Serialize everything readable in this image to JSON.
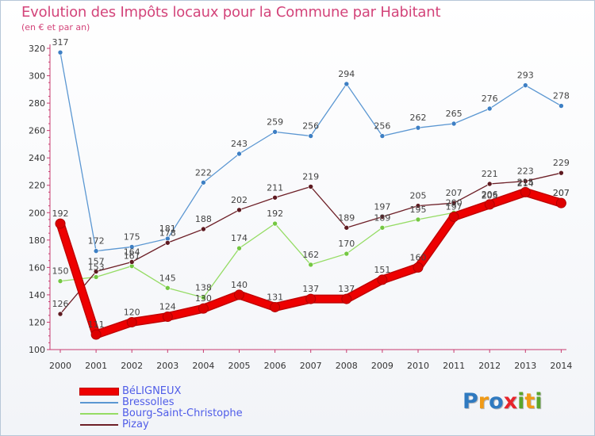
{
  "title": "Evolution des Impôts locaux pour la Commune par Habitant",
  "subtitle": "(en € et par an)",
  "logo": {
    "text": "Proxiti",
    "letters": [
      {
        "char": "P",
        "color": "#2f7ac0"
      },
      {
        "char": "r",
        "color": "#f09a16"
      },
      {
        "char": "o",
        "color": "#2f7ac0"
      },
      {
        "char": "x",
        "color": "#e7242b"
      },
      {
        "char": "i",
        "color": "#5aa52c"
      },
      {
        "char": "t",
        "color": "#f09a16"
      },
      {
        "char": "i",
        "color": "#5aa52c"
      }
    ]
  },
  "chart_data": {
    "type": "line",
    "title": "Evolution des Impôts locaux pour la Commune par Habitant",
    "subtitle": "(en € et par an)",
    "xlabel": "",
    "ylabel": "",
    "x": [
      "2000",
      "2001",
      "2002",
      "2003",
      "2004",
      "2005",
      "2006",
      "2007",
      "2008",
      "2009",
      "2010",
      "2011",
      "2012",
      "2013",
      "2014"
    ],
    "ylim": [
      100,
      320
    ],
    "yticks": [
      100,
      120,
      140,
      160,
      180,
      200,
      220,
      240,
      260,
      280,
      300,
      320
    ],
    "grid": false,
    "legend_position": "bottom-left",
    "series": [
      {
        "name": "BéLIGNEUX",
        "color": "#ee0000",
        "emphasis": true,
        "values": [
          192,
          111,
          120,
          124,
          130,
          140,
          131,
          137,
          137,
          151,
          160,
          197,
          206,
          215,
          207
        ],
        "labels": [
          "192",
          "111",
          "120",
          "124",
          "130",
          "140",
          "131",
          "137",
          "137",
          "151",
          "160",
          "197",
          "206",
          "215",
          "207"
        ]
      },
      {
        "name": "Bressolles",
        "color": "#5b97d2",
        "marker": "#3d7fc4",
        "values": [
          317,
          172,
          175,
          181,
          222,
          243,
          259,
          256,
          294,
          256,
          262,
          265,
          276,
          293,
          278
        ],
        "labels": [
          "317",
          "172",
          "175",
          "181",
          "222",
          "243",
          "259",
          "256",
          "294",
          "256",
          "262",
          "265",
          "276",
          "293",
          "278"
        ]
      },
      {
        "name": "Bourg-Saint-Christophe",
        "color": "#95dc64",
        "marker": "#74c742",
        "values": [
          150,
          153,
          161,
          145,
          138,
          174,
          192,
          162,
          170,
          189,
          195,
          200,
          205,
          214,
          207
        ],
        "labels": [
          "150",
          "153",
          "161",
          "145",
          "138",
          "174",
          "192",
          "162",
          "170",
          "189",
          "195",
          "200",
          "205",
          "214",
          "207"
        ]
      },
      {
        "name": "Pizay",
        "color": "#6d1f27",
        "marker": "#5e1a21",
        "values": [
          126,
          157,
          164,
          178,
          188,
          202,
          211,
          219,
          189,
          197,
          205,
          207,
          221,
          223,
          229
        ],
        "labels": [
          "126",
          "157",
          "164",
          "178",
          "188",
          "202",
          "211",
          "219",
          "189",
          "197",
          "205",
          "207",
          "221",
          "223",
          "229"
        ]
      }
    ]
  }
}
